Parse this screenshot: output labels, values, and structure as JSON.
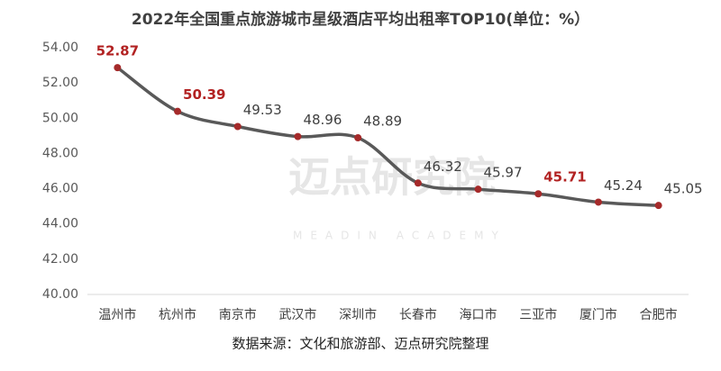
{
  "chart_data": {
    "type": "line",
    "title": "2022年全国重点旅游城市星级酒店平均出租率TOP10(单位：%）",
    "source": "数据来源：文化和旅游部、迈点研究院整理",
    "watermark": "迈点研究院",
    "watermark_sub": "MEADIN ACADEMY",
    "categories": [
      "温州市",
      "杭州市",
      "南京市",
      "武汉市",
      "深圳市",
      "长春市",
      "海口市",
      "三亚市",
      "厦门市",
      "合肥市"
    ],
    "series": [
      {
        "name": "平均出租率",
        "color": "#595959",
        "marker_color": "#a52a2a",
        "values": [
          52.87,
          50.39,
          49.53,
          48.96,
          48.89,
          46.32,
          45.97,
          45.71,
          45.24,
          45.05
        ],
        "label_colors": [
          "#b22222",
          "#b22222",
          "#404040",
          "#404040",
          "#404040",
          "#404040",
          "#404040",
          "#b22222",
          "#404040",
          "#404040"
        ]
      }
    ],
    "ylim": [
      40,
      54
    ],
    "yticks": [
      {
        "value": 40,
        "label": "40.00"
      },
      {
        "value": 42,
        "label": "42.00"
      },
      {
        "value": 44,
        "label": "44.00"
      },
      {
        "value": 46,
        "label": "46.00"
      },
      {
        "value": 48,
        "label": "48.00"
      },
      {
        "value": 50,
        "label": "50.00"
      },
      {
        "value": 52,
        "label": "52.00"
      },
      {
        "value": 54,
        "label": "54.00"
      }
    ],
    "grid": false,
    "smooth": true
  }
}
